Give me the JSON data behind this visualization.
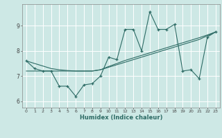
{
  "xlabel": "Humidex (Indice chaleur)",
  "background_color": "#cde8e5",
  "line_color": "#2d6b65",
  "grid_color": "#ffffff",
  "x_data": [
    0,
    1,
    2,
    3,
    4,
    5,
    6,
    7,
    8,
    9,
    10,
    11,
    12,
    13,
    14,
    15,
    16,
    17,
    18,
    19,
    20,
    21,
    22,
    23
  ],
  "y_main": [
    7.6,
    7.3,
    7.2,
    7.2,
    6.6,
    6.6,
    6.2,
    6.65,
    6.7,
    7.0,
    7.75,
    7.65,
    8.85,
    8.85,
    8.0,
    9.55,
    8.85,
    8.85,
    9.05,
    7.2,
    7.25,
    6.9,
    8.55,
    8.75
  ],
  "y_trend1": [
    7.2,
    7.2,
    7.2,
    7.2,
    7.2,
    7.2,
    7.2,
    7.2,
    7.2,
    7.25,
    7.35,
    7.45,
    7.55,
    7.65,
    7.75,
    7.85,
    7.95,
    8.05,
    8.15,
    8.25,
    8.35,
    8.45,
    8.6,
    8.75
  ],
  "y_trend2": [
    7.6,
    7.5,
    7.4,
    7.3,
    7.25,
    7.22,
    7.2,
    7.2,
    7.2,
    7.25,
    7.38,
    7.5,
    7.62,
    7.72,
    7.82,
    7.92,
    8.02,
    8.12,
    8.22,
    8.32,
    8.42,
    8.52,
    8.63,
    8.75
  ],
  "ylim": [
    5.75,
    9.85
  ],
  "yticks": [
    6,
    7,
    8,
    9
  ],
  "xlim": [
    -0.5,
    23.5
  ],
  "figsize": [
    3.2,
    2.0
  ],
  "dpi": 100
}
